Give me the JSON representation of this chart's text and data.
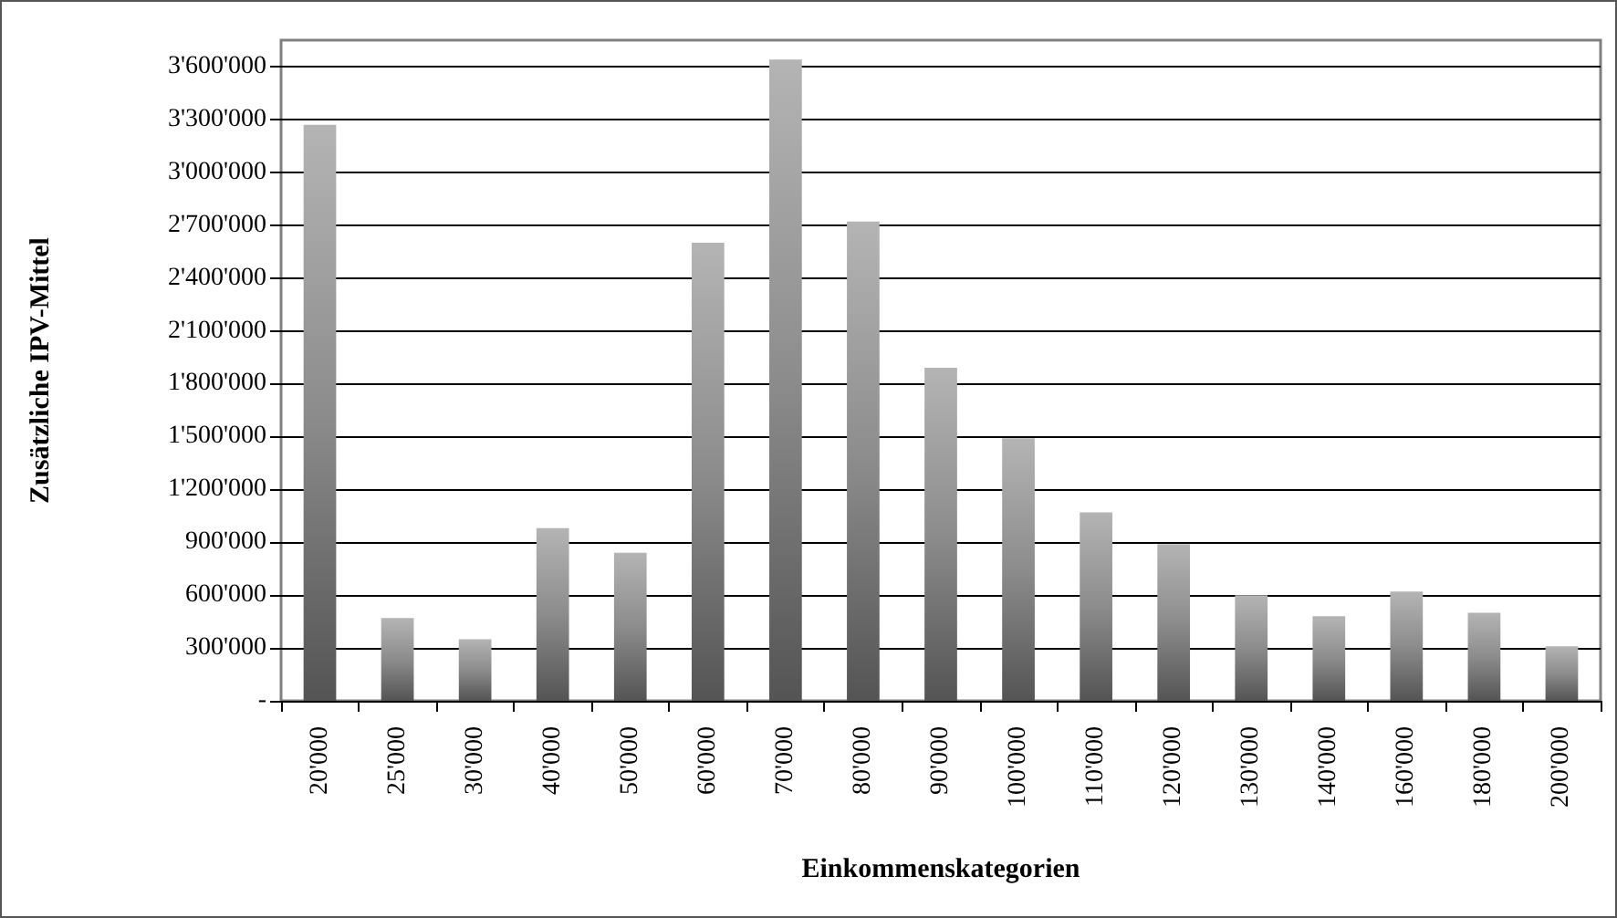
{
  "chart_data": {
    "type": "bar",
    "xlabel": "Einkommenskategorien",
    "ylabel": "Zusätzliche IPV-Mittel",
    "categories": [
      "20'000",
      "25'000",
      "30'000",
      "40'000",
      "50'000",
      "60'000",
      "70'000",
      "80'000",
      "90'000",
      "100'000",
      "110'000",
      "120'000",
      "130'000",
      "140'000",
      "160'000",
      "180'000",
      "200'000"
    ],
    "values": [
      3270000,
      470000,
      350000,
      980000,
      840000,
      2600000,
      3640000,
      2720000,
      1890000,
      1490000,
      1070000,
      890000,
      600000,
      480000,
      620000,
      500000,
      310000
    ],
    "color": "#8c8c8c",
    "ylim": [
      0,
      3750000
    ],
    "yticks": [
      {
        "value": 0,
        "label": "-"
      },
      {
        "value": 300000,
        "label": "300'000"
      },
      {
        "value": 600000,
        "label": "600'000"
      },
      {
        "value": 900000,
        "label": "900'000"
      },
      {
        "value": 1200000,
        "label": "1'200'000"
      },
      {
        "value": 1500000,
        "label": "1'500'000"
      },
      {
        "value": 1800000,
        "label": "1'800'000"
      },
      {
        "value": 2100000,
        "label": "2'100'000"
      },
      {
        "value": 2400000,
        "label": "2'400'000"
      },
      {
        "value": 2700000,
        "label": "2'700'000"
      },
      {
        "value": 3000000,
        "label": "3'000'000"
      },
      {
        "value": 3300000,
        "label": "3'300'000"
      },
      {
        "value": 3600000,
        "label": "3'600'000"
      }
    ],
    "grid": "y"
  }
}
